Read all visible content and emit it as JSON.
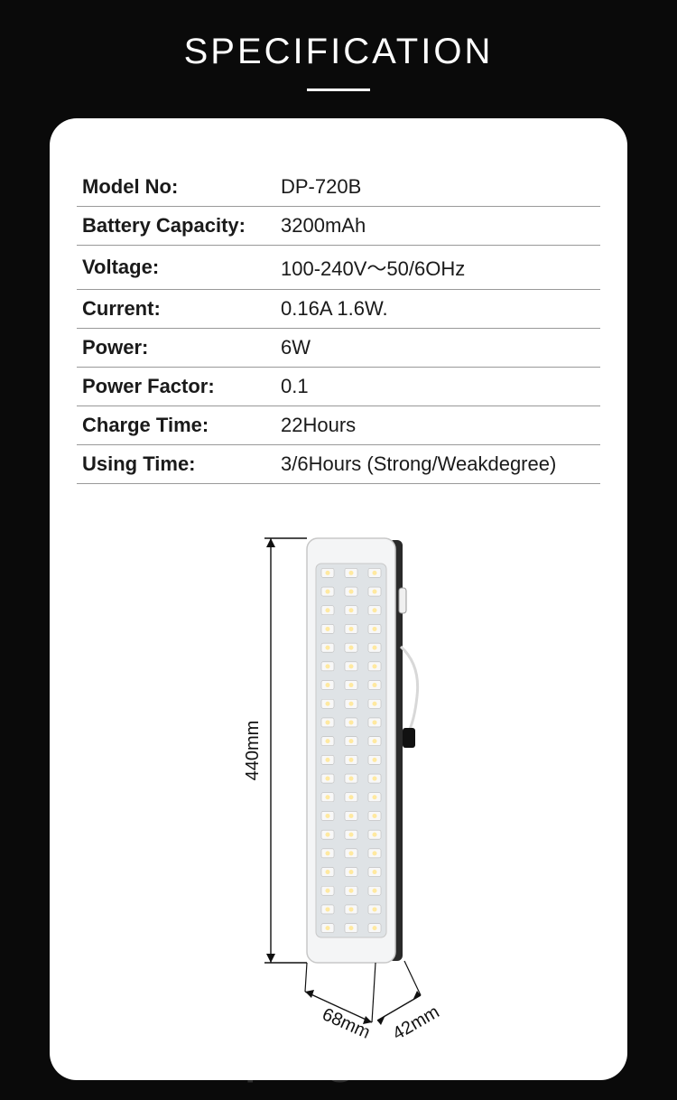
{
  "title": "SPECIFICATION",
  "specs": [
    {
      "label": "Model No:",
      "value": "DP-720B"
    },
    {
      "label": "Battery Capacity:",
      "value": "3200mAh"
    },
    {
      "label": "Voltage:",
      "value": "100-240V～50/6OHz"
    },
    {
      "label": "Current:",
      "value": "0.16A 1.6W."
    },
    {
      "label": "Power:",
      "value": "6W"
    },
    {
      "label": "Power Factor:",
      "value": "0.1"
    },
    {
      "label": "Charge Time:",
      "value": "22Hours"
    },
    {
      "label": "Using Time:",
      "value": "3/6Hours (Strong/Weakdegree)"
    }
  ],
  "dimensions": {
    "height_label": "440mm",
    "width_label": "68mm",
    "depth_label": "42mm"
  },
  "diagram_style": {
    "body_fill": "#f4f5f6",
    "body_stroke": "#c8c8c8",
    "panel_fill": "#dfe3e6",
    "led_fill": "#f8f8f8",
    "led_highlight": "#ffe9a0",
    "side_fill": "#2a2a2a",
    "dim_line_color": "#111111",
    "dim_text_color": "#111111",
    "dim_fontsize": 20,
    "led_rows": 20,
    "led_cols": 3
  },
  "watermark": "ru.dp-light.com",
  "colors": {
    "page_bg": "#0a0a0a",
    "card_bg": "#ffffff",
    "title_color": "#ffffff",
    "divider": "#999999",
    "text": "#1a1a1a"
  }
}
